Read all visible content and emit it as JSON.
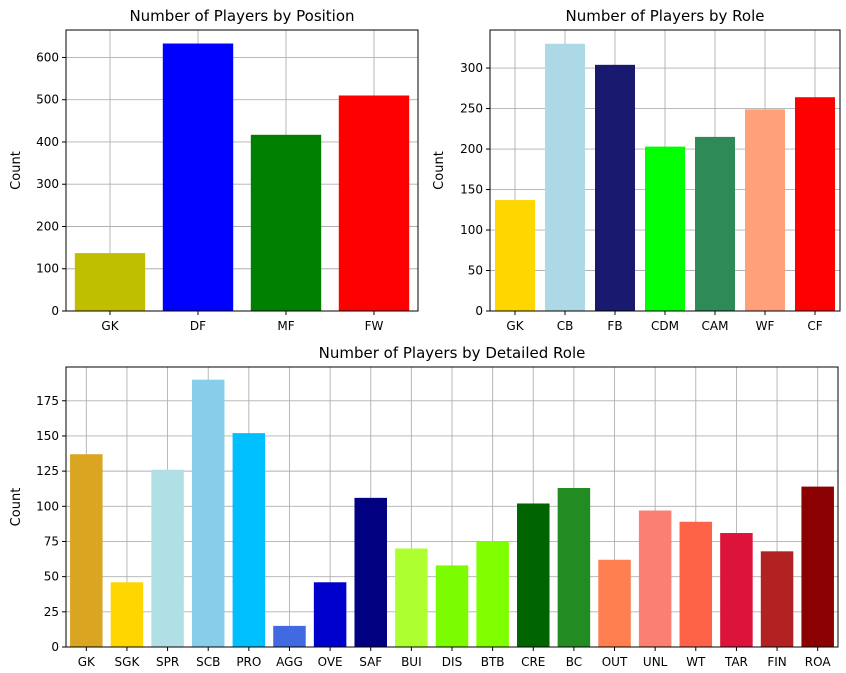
{
  "chart_data": [
    {
      "type": "bar",
      "title": "Number of Players by Position",
      "xlabel": "",
      "ylabel": "Count",
      "categories": [
        "GK",
        "DF",
        "MF",
        "FW"
      ],
      "values": [
        137,
        633,
        417,
        510
      ],
      "colors": [
        "#bfbf00",
        "#0000ff",
        "#008000",
        "#ff0000"
      ],
      "ylim": [
        0,
        665
      ],
      "yticks": [
        0,
        100,
        200,
        300,
        400,
        500,
        600
      ],
      "grid": true
    },
    {
      "type": "bar",
      "title": "Number of Players by Role",
      "xlabel": "",
      "ylabel": "Count",
      "categories": [
        "GK",
        "CB",
        "FB",
        "CDM",
        "CAM",
        "WF",
        "CF"
      ],
      "values": [
        137,
        330,
        304,
        203,
        215,
        249,
        264
      ],
      "colors": [
        "#ffd700",
        "#add8e6",
        "#191970",
        "#00ff00",
        "#2e8b57",
        "#ffa07a",
        "#ff0000"
      ],
      "ylim": [
        0,
        347
      ],
      "yticks": [
        0,
        50,
        100,
        150,
        200,
        250,
        300
      ],
      "grid": true
    },
    {
      "type": "bar",
      "title": "Number of Players by Detailed Role",
      "xlabel": "",
      "ylabel": "Count",
      "categories": [
        "GK",
        "SGK",
        "SPR",
        "SCB",
        "PRO",
        "AGG",
        "OVE",
        "SAF",
        "BUI",
        "DIS",
        "BTB",
        "CRE",
        "BC",
        "OUT",
        "UNL",
        "WT",
        "TAR",
        "FIN",
        "ROA"
      ],
      "values": [
        137,
        46,
        126,
        190,
        152,
        15,
        46,
        106,
        70,
        58,
        75,
        102,
        113,
        62,
        97,
        89,
        81,
        68,
        114
      ],
      "colors": [
        "#daa520",
        "#ffd700",
        "#b0e0e6",
        "#87ceeb",
        "#00bfff",
        "#4169e1",
        "#0000cd",
        "#000080",
        "#adff2f",
        "#7cfc00",
        "#7fff00",
        "#006400",
        "#228b22",
        "#ff7f50",
        "#fa8072",
        "#ff6347",
        "#dc143c",
        "#b22222",
        "#8b0000"
      ],
      "ylim": [
        0,
        199
      ],
      "yticks": [
        0,
        25,
        50,
        75,
        100,
        125,
        150,
        175
      ],
      "grid": true
    }
  ]
}
